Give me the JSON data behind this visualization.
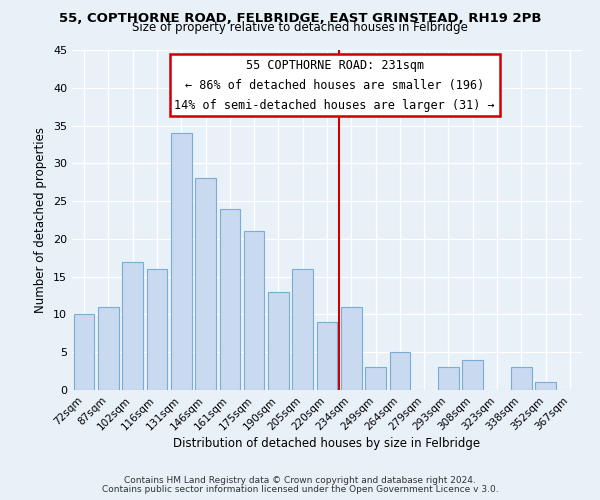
{
  "title_line1": "55, COPTHORNE ROAD, FELBRIDGE, EAST GRINSTEAD, RH19 2PB",
  "title_line2": "Size of property relative to detached houses in Felbridge",
  "xlabel": "Distribution of detached houses by size in Felbridge",
  "ylabel": "Number of detached properties",
  "bar_labels": [
    "72sqm",
    "87sqm",
    "102sqm",
    "116sqm",
    "131sqm",
    "146sqm",
    "161sqm",
    "175sqm",
    "190sqm",
    "205sqm",
    "220sqm",
    "234sqm",
    "249sqm",
    "264sqm",
    "279sqm",
    "293sqm",
    "308sqm",
    "323sqm",
    "338sqm",
    "352sqm",
    "367sqm"
  ],
  "bar_values": [
    10,
    11,
    17,
    16,
    34,
    28,
    24,
    21,
    13,
    16,
    9,
    11,
    3,
    5,
    0,
    3,
    4,
    0,
    3,
    1,
    0
  ],
  "bar_color": "#c8d9f0",
  "bar_edge_color": "#7aadd4",
  "vline_index": 11,
  "vline_color": "#cc0000",
  "annotation_title": "55 COPTHORNE ROAD: 231sqm",
  "annotation_line1": "← 86% of detached houses are smaller (196)",
  "annotation_line2": "14% of semi-detached houses are larger (31) →",
  "annotation_box_facecolor": "#ffffff",
  "annotation_box_edgecolor": "#cc0000",
  "ylim": [
    0,
    45
  ],
  "yticks": [
    0,
    5,
    10,
    15,
    20,
    25,
    30,
    35,
    40,
    45
  ],
  "footer_line1": "Contains HM Land Registry data © Crown copyright and database right 2024.",
  "footer_line2": "Contains public sector information licensed under the Open Government Licence v 3.0.",
  "bg_color": "#e8f0f8",
  "plot_bg_color": "#e8f0f8",
  "title1_fontsize": 9.5,
  "title2_fontsize": 8.5,
  "ylabel_fontsize": 8.5,
  "xlabel_fontsize": 8.5,
  "xtick_fontsize": 7.5,
  "ytick_fontsize": 8.0,
  "ann_fontsize": 8.5,
  "footer_fontsize": 6.5
}
